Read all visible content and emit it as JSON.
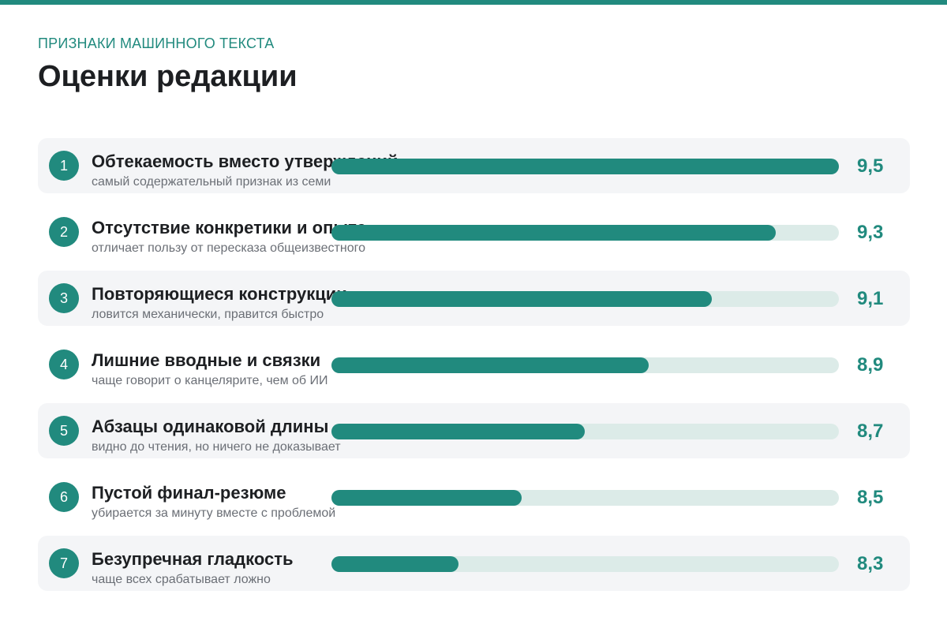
{
  "header": {
    "eyebrow": "ПРИЗНАКИ МАШИННОГО ТЕКСТА",
    "title": "Оценки редакции"
  },
  "colors": {
    "accent": "#218a7e",
    "track": "#dcebe8",
    "row_shade": "#f4f5f7"
  },
  "chart_data": {
    "type": "bar",
    "title": "Оценки редакции",
    "xlim": [
      7.9,
      9.5
    ],
    "categories": [
      "Обтекаемость вместо утверждений",
      "Отсутствие конкретики и опыта",
      "Повторяющиеся конструкции",
      "Лишние вводные и связки",
      "Абзацы одинаковой длины",
      "Пустой финал-резюме",
      "Безупречная гладкость"
    ],
    "values": [
      9.5,
      9.3,
      9.1,
      8.9,
      8.7,
      8.5,
      8.3
    ],
    "value_labels": [
      "9,5",
      "9,3",
      "9,1",
      "8,9",
      "8,7",
      "8,5",
      "8,3"
    ],
    "ranks": [
      "1",
      "2",
      "3",
      "4",
      "5",
      "6",
      "7"
    ],
    "notes": [
      "самый содержательный признак из семи",
      "отличает пользу от пересказа общеизвестного",
      "ловится механически, правится быстро",
      "чаще говорит о канцелярите, чем об ИИ",
      "видно до чтения, но ничего не доказывает",
      "убирается за минуту вместе с проблемой",
      "чаще всех срабатывает ложно"
    ]
  }
}
